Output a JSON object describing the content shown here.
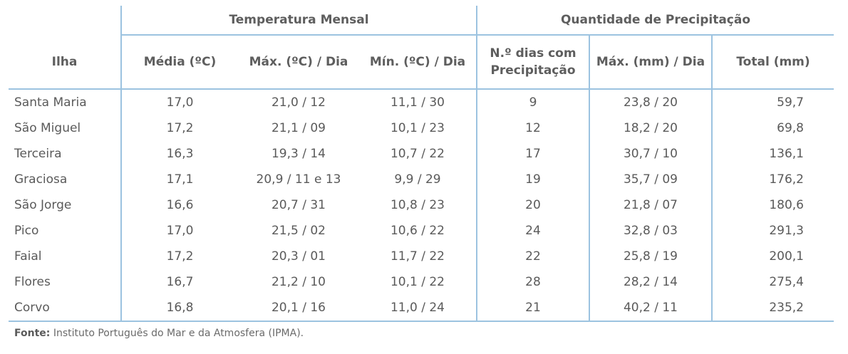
{
  "header": {
    "group_temperature": "Temperatura Mensal",
    "group_precipitation": "Quantidade de Precipitação",
    "columns": [
      "Ilha",
      "Média (ºC)",
      "Máx. (ºC) / Dia",
      "Mín. (ºC) / Dia",
      "N.º dias com Precipitação",
      "Máx. (mm) / Dia",
      "Total (mm)"
    ]
  },
  "rows": [
    [
      "Santa Maria",
      "17,0",
      "21,0 / 12",
      "11,1 / 30",
      "9",
      "23,8 / 20",
      "59,7"
    ],
    [
      "São Miguel",
      "17,2",
      "21,1 / 09",
      "10,1 / 23",
      "12",
      "18,2 / 20",
      "69,8"
    ],
    [
      "Terceira",
      "16,3",
      "19,3 / 14",
      "10,7 / 22",
      "17",
      "30,7 / 10",
      "136,1"
    ],
    [
      "Graciosa",
      "17,1",
      "20,9 / 11 e 13",
      "9,9 / 29",
      "19",
      "35,7 / 09",
      "176,2"
    ],
    [
      "São Jorge",
      "16,6",
      "20,7 / 31",
      "10,8 / 23",
      "20",
      "21,8 / 07",
      "180,6"
    ],
    [
      "Pico",
      "17,0",
      "21,5 / 02",
      "10,6 / 22",
      "24",
      "32,8 / 03",
      "291,3"
    ],
    [
      "Faial",
      "17,2",
      "20,3 / 01",
      "11,7 / 22",
      "22",
      "25,8 / 19",
      "200,1"
    ],
    [
      "Flores",
      "16,7",
      "21,2 / 10",
      "10,1 / 22",
      "28",
      "28,2 / 14",
      "275,4"
    ],
    [
      "Corvo",
      "16,8",
      "20,1 / 16",
      "11,0 / 24",
      "21",
      "40,2 / 11",
      "235,2"
    ]
  ],
  "source": {
    "label": "Fonte:",
    "text": " Instituto Português do Mar e da Atmosfera (IPMA)."
  }
}
